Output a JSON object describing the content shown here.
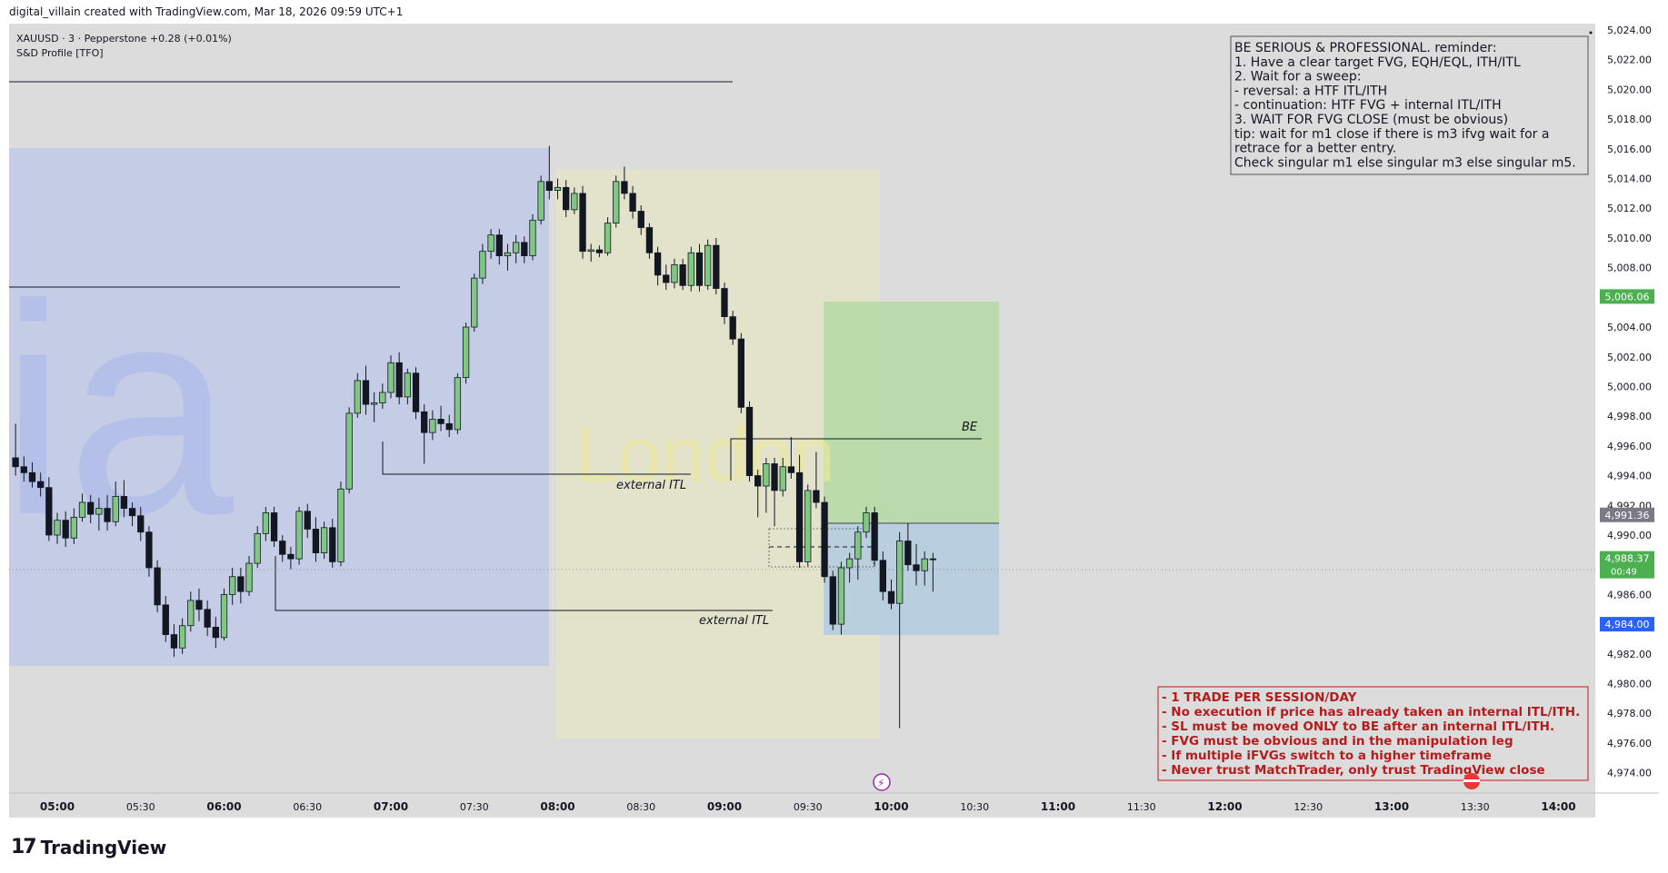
{
  "header": {
    "created_by": "digital_villain created with TradingView.com, Mar 18, 2026 09:59 UTC+1"
  },
  "legend": {
    "symbol_line": "XAUUSD · 3 · Pepperstone  +0.28 (+0.01%)",
    "indicator": "S&D Profile [TFO]"
  },
  "watermark": "ia",
  "session_label": "London",
  "notes": {
    "top": [
      "BE SERIOUS & PROFESSIONAL. reminder:",
      "1. Have a clear target FVG, EQH/EQL, ITH/ITL",
      "2. Wait for a sweep:",
      "- reversal: a HTF ITL/ITH",
      "- continuation: HTF FVG + internal ITL/ITH",
      "3. WAIT FOR FVG CLOSE (must be obvious)",
      "tip: wait for m1 close if there is m3 ifvg wait for a",
      "retrace for a better entry.",
      "Check singular m1 else singular m3 else singular m5."
    ],
    "bottom": [
      "- 1 TRADE PER SESSION/DAY",
      "- No execution if price has already taken an internal ITL/ITH.",
      "- SL must be moved ONLY to BE after an internal ITL/ITH.",
      "- FVG must be obvious and in the manipulation leg",
      "- If multiple iFVGs switch to a higher timeframe",
      "- Never trust MatchTrader, only trust TradingView close"
    ]
  },
  "annotations": [
    {
      "id": "external-itl-1",
      "text": "external ITL"
    },
    {
      "id": "external-itl-2",
      "text": "external ITL"
    },
    {
      "id": "be",
      "text": "BE"
    }
  ],
  "price_badges": [
    {
      "id": "target",
      "text": "5,006.06",
      "value": 5006.06,
      "color": "#4caf50"
    },
    {
      "id": "be-level",
      "text": "4,991.36",
      "value": 4991.36,
      "color": "#787b86"
    },
    {
      "id": "current",
      "text": "4,988.37",
      "subtext": "00:49",
      "value": 4988.37,
      "color": "#4caf50"
    },
    {
      "id": "stop",
      "text": "4,984.00",
      "value": 4984.0,
      "color": "#2962ff"
    }
  ],
  "brand": {
    "logo_text": "TradingView"
  },
  "colors": {
    "background": "#dcdcdc",
    "bull": "#81c784",
    "bear": "#131722",
    "asia_zone": "#c5cde6",
    "london_zone": "#e3e2cb",
    "profit_zone": "#b4d9a6",
    "risk_zone": "#b5cde0",
    "note_red": "#b71c1c"
  },
  "chart_data": {
    "type": "candlestick",
    "symbol": "XAUUSD",
    "timeframe": "3",
    "broker": "Pepperstone",
    "ylim": [
      4973,
      5024
    ],
    "y_ticks": [
      "5,024.00",
      "5,022.00",
      "5,020.00",
      "5,018.00",
      "5,016.00",
      "5,014.00",
      "5,012.00",
      "5,010.00",
      "5,008.00",
      "5,006.00",
      "5,004.00",
      "5,002.00",
      "5,000.00",
      "4,998.00",
      "4,996.00",
      "4,994.00",
      "4,992.00",
      "4,990.00",
      "4,988.00",
      "4,986.00",
      "4,984.00",
      "4,982.00",
      "4,980.00",
      "4,978.00",
      "4,976.00",
      "4,974.00"
    ],
    "x_ticks": [
      "05:00",
      "05:30",
      "06:00",
      "06:30",
      "07:00",
      "07:30",
      "08:00",
      "08:30",
      "09:00",
      "09:30",
      "10:00",
      "10:30",
      "11:00",
      "11:30",
      "12:00",
      "12:30",
      "13:00",
      "13:30",
      "14:00"
    ],
    "candles": [
      {
        "t": "04:45",
        "o": 4995.2,
        "h": 4997.5,
        "l": 4994.0,
        "c": 4994.6
      },
      {
        "t": "04:48",
        "o": 4994.6,
        "h": 4995.3,
        "l": 4993.6,
        "c": 4994.2
      },
      {
        "t": "04:51",
        "o": 4994.2,
        "h": 4994.9,
        "l": 4993.2,
        "c": 4993.6
      },
      {
        "t": "04:54",
        "o": 4993.6,
        "h": 4994.2,
        "l": 4992.6,
        "c": 4993.2
      },
      {
        "t": "04:57",
        "o": 4993.2,
        "h": 4993.9,
        "l": 4989.6,
        "c": 4990.0
      },
      {
        "t": "05:00",
        "o": 4990.0,
        "h": 4991.5,
        "l": 4989.4,
        "c": 4991.0
      },
      {
        "t": "05:03",
        "o": 4991.0,
        "h": 4991.6,
        "l": 4989.2,
        "c": 4989.8
      },
      {
        "t": "05:06",
        "o": 4989.8,
        "h": 4991.8,
        "l": 4989.4,
        "c": 4991.2
      },
      {
        "t": "05:09",
        "o": 4991.2,
        "h": 4992.8,
        "l": 4990.9,
        "c": 4992.2
      },
      {
        "t": "05:12",
        "o": 4992.2,
        "h": 4992.7,
        "l": 4990.8,
        "c": 4991.4
      },
      {
        "t": "05:15",
        "o": 4991.4,
        "h": 4992.5,
        "l": 4990.3,
        "c": 4991.8
      },
      {
        "t": "05:18",
        "o": 4991.8,
        "h": 4992.7,
        "l": 4990.3,
        "c": 4990.9
      },
      {
        "t": "05:21",
        "o": 4990.9,
        "h": 4993.6,
        "l": 4990.6,
        "c": 4992.6
      },
      {
        "t": "05:24",
        "o": 4992.6,
        "h": 4993.7,
        "l": 4991.2,
        "c": 4991.8
      },
      {
        "t": "05:27",
        "o": 4991.8,
        "h": 4992.2,
        "l": 4990.6,
        "c": 4991.3
      },
      {
        "t": "05:30",
        "o": 4991.3,
        "h": 4991.9,
        "l": 4989.6,
        "c": 4990.2
      },
      {
        "t": "05:33",
        "o": 4990.2,
        "h": 4990.6,
        "l": 4987.2,
        "c": 4987.8
      },
      {
        "t": "05:36",
        "o": 4987.8,
        "h": 4988.3,
        "l": 4984.8,
        "c": 4985.3
      },
      {
        "t": "05:39",
        "o": 4985.3,
        "h": 4985.9,
        "l": 4982.8,
        "c": 4983.3
      },
      {
        "t": "05:42",
        "o": 4983.3,
        "h": 4984.0,
        "l": 4981.8,
        "c": 4982.4
      },
      {
        "t": "05:45",
        "o": 4982.4,
        "h": 4984.4,
        "l": 4982.0,
        "c": 4983.9
      },
      {
        "t": "05:48",
        "o": 4983.9,
        "h": 4986.2,
        "l": 4983.5,
        "c": 4985.6
      },
      {
        "t": "05:51",
        "o": 4985.6,
        "h": 4986.4,
        "l": 4984.2,
        "c": 4985.0
      },
      {
        "t": "05:54",
        "o": 4985.0,
        "h": 4985.6,
        "l": 4983.2,
        "c": 4983.8
      },
      {
        "t": "05:57",
        "o": 4983.8,
        "h": 4984.5,
        "l": 4982.4,
        "c": 4983.1
      },
      {
        "t": "06:00",
        "o": 4983.1,
        "h": 4986.4,
        "l": 4982.9,
        "c": 4986.0
      },
      {
        "t": "06:03",
        "o": 4986.0,
        "h": 4987.8,
        "l": 4985.3,
        "c": 4987.2
      },
      {
        "t": "06:06",
        "o": 4987.2,
        "h": 4987.8,
        "l": 4985.4,
        "c": 4986.2
      },
      {
        "t": "06:09",
        "o": 4986.2,
        "h": 4988.6,
        "l": 4985.9,
        "c": 4988.1
      },
      {
        "t": "06:12",
        "o": 4988.1,
        "h": 4990.6,
        "l": 4987.8,
        "c": 4990.1
      },
      {
        "t": "06:15",
        "o": 4990.1,
        "h": 4991.9,
        "l": 4989.6,
        "c": 4991.5
      },
      {
        "t": "06:18",
        "o": 4991.5,
        "h": 4991.9,
        "l": 4989.2,
        "c": 4989.6
      },
      {
        "t": "06:21",
        "o": 4989.6,
        "h": 4990.0,
        "l": 4988.2,
        "c": 4988.7
      },
      {
        "t": "06:24",
        "o": 4988.7,
        "h": 4989.2,
        "l": 4987.7,
        "c": 4988.4
      },
      {
        "t": "06:27",
        "o": 4988.4,
        "h": 4991.9,
        "l": 4988.0,
        "c": 4991.6
      },
      {
        "t": "06:30",
        "o": 4991.6,
        "h": 4992.1,
        "l": 4989.8,
        "c": 4990.4
      },
      {
        "t": "06:33",
        "o": 4990.4,
        "h": 4991.2,
        "l": 4988.2,
        "c": 4988.8
      },
      {
        "t": "06:36",
        "o": 4988.8,
        "h": 4990.9,
        "l": 4988.4,
        "c": 4990.5
      },
      {
        "t": "06:39",
        "o": 4990.5,
        "h": 4991.1,
        "l": 4987.8,
        "c": 4988.2
      },
      {
        "t": "06:42",
        "o": 4988.2,
        "h": 4993.6,
        "l": 4987.9,
        "c": 4993.1
      },
      {
        "t": "06:45",
        "o": 4993.1,
        "h": 4998.6,
        "l": 4992.8,
        "c": 4998.2
      },
      {
        "t": "06:48",
        "o": 4998.2,
        "h": 5000.9,
        "l": 4997.9,
        "c": 5000.4
      },
      {
        "t": "06:51",
        "o": 5000.4,
        "h": 5001.4,
        "l": 4998.1,
        "c": 4998.8
      },
      {
        "t": "06:54",
        "o": 4998.8,
        "h": 4999.6,
        "l": 4997.6,
        "c": 4998.9
      },
      {
        "t": "06:57",
        "o": 4998.9,
        "h": 5000.2,
        "l": 4998.5,
        "c": 4999.6
      },
      {
        "t": "07:00",
        "o": 4999.6,
        "h": 5002.1,
        "l": 4999.2,
        "c": 5001.6
      },
      {
        "t": "07:03",
        "o": 5001.6,
        "h": 5002.3,
        "l": 4998.8,
        "c": 4999.3
      },
      {
        "t": "07:06",
        "o": 4999.3,
        "h": 5001.2,
        "l": 4998.8,
        "c": 5000.9
      },
      {
        "t": "07:09",
        "o": 5000.9,
        "h": 5001.3,
        "l": 4997.8,
        "c": 4998.3
      },
      {
        "t": "07:12",
        "o": 4998.3,
        "h": 4998.8,
        "l": 4994.8,
        "c": 4996.9
      },
      {
        "t": "07:15",
        "o": 4996.9,
        "h": 4998.4,
        "l": 4996.4,
        "c": 4997.8
      },
      {
        "t": "07:18",
        "o": 4997.8,
        "h": 4998.7,
        "l": 4997.0,
        "c": 4997.5
      },
      {
        "t": "07:21",
        "o": 4997.5,
        "h": 4998.1,
        "l": 4996.6,
        "c": 4997.1
      },
      {
        "t": "07:24",
        "o": 4997.1,
        "h": 5000.9,
        "l": 4996.8,
        "c": 5000.6
      },
      {
        "t": "07:27",
        "o": 5000.6,
        "h": 5004.3,
        "l": 5000.2,
        "c": 5004.0
      },
      {
        "t": "07:30",
        "o": 5004.0,
        "h": 5007.6,
        "l": 5003.7,
        "c": 5007.3
      },
      {
        "t": "07:33",
        "o": 5007.3,
        "h": 5009.6,
        "l": 5006.9,
        "c": 5009.1
      },
      {
        "t": "07:36",
        "o": 5009.1,
        "h": 5010.6,
        "l": 5008.6,
        "c": 5010.2
      },
      {
        "t": "07:39",
        "o": 5010.2,
        "h": 5010.6,
        "l": 5008.2,
        "c": 5008.8
      },
      {
        "t": "07:42",
        "o": 5008.8,
        "h": 5009.6,
        "l": 5007.8,
        "c": 5009.0
      },
      {
        "t": "07:45",
        "o": 5009.0,
        "h": 5010.2,
        "l": 5008.3,
        "c": 5009.7
      },
      {
        "t": "07:48",
        "o": 5009.7,
        "h": 5010.1,
        "l": 5008.3,
        "c": 5008.8
      },
      {
        "t": "07:51",
        "o": 5008.8,
        "h": 5011.6,
        "l": 5008.5,
        "c": 5011.2
      },
      {
        "t": "07:54",
        "o": 5011.2,
        "h": 5014.2,
        "l": 5010.9,
        "c": 5013.8
      },
      {
        "t": "07:57",
        "o": 5013.8,
        "h": 5016.2,
        "l": 5012.6,
        "c": 5013.2
      },
      {
        "t": "08:00",
        "o": 5013.2,
        "h": 5014.0,
        "l": 5012.6,
        "c": 5013.4
      },
      {
        "t": "08:03",
        "o": 5013.4,
        "h": 5013.9,
        "l": 5011.4,
        "c": 5011.9
      },
      {
        "t": "08:06",
        "o": 5011.9,
        "h": 5013.4,
        "l": 5011.6,
        "c": 5013.0
      },
      {
        "t": "08:09",
        "o": 5013.0,
        "h": 5013.5,
        "l": 5008.6,
        "c": 5009.1
      },
      {
        "t": "08:12",
        "o": 5009.1,
        "h": 5009.6,
        "l": 5008.4,
        "c": 5009.2
      },
      {
        "t": "08:15",
        "o": 5009.2,
        "h": 5009.5,
        "l": 5008.7,
        "c": 5009.0
      },
      {
        "t": "08:18",
        "o": 5009.0,
        "h": 5011.4,
        "l": 5008.8,
        "c": 5011.0
      },
      {
        "t": "08:21",
        "o": 5011.0,
        "h": 5014.2,
        "l": 5010.7,
        "c": 5013.8
      },
      {
        "t": "08:24",
        "o": 5013.8,
        "h": 5014.8,
        "l": 5012.6,
        "c": 5013.0
      },
      {
        "t": "08:27",
        "o": 5013.0,
        "h": 5013.5,
        "l": 5011.3,
        "c": 5011.8
      },
      {
        "t": "08:30",
        "o": 5011.8,
        "h": 5012.2,
        "l": 5010.2,
        "c": 5010.7
      },
      {
        "t": "08:33",
        "o": 5010.7,
        "h": 5011.0,
        "l": 5008.6,
        "c": 5009.0
      },
      {
        "t": "08:36",
        "o": 5009.0,
        "h": 5009.4,
        "l": 5006.8,
        "c": 5007.5
      },
      {
        "t": "08:39",
        "o": 5007.5,
        "h": 5008.2,
        "l": 5006.5,
        "c": 5007.0
      },
      {
        "t": "08:42",
        "o": 5007.0,
        "h": 5008.6,
        "l": 5006.6,
        "c": 5008.2
      },
      {
        "t": "08:45",
        "o": 5008.2,
        "h": 5008.6,
        "l": 5006.5,
        "c": 5006.8
      },
      {
        "t": "08:48",
        "o": 5006.8,
        "h": 5009.4,
        "l": 5006.4,
        "c": 5009.0
      },
      {
        "t": "08:51",
        "o": 5009.0,
        "h": 5009.6,
        "l": 5006.4,
        "c": 5006.8
      },
      {
        "t": "08:54",
        "o": 5006.8,
        "h": 5009.9,
        "l": 5006.5,
        "c": 5009.5
      },
      {
        "t": "08:57",
        "o": 5009.5,
        "h": 5010.0,
        "l": 5006.2,
        "c": 5006.6
      },
      {
        "t": "09:00",
        "o": 5006.6,
        "h": 5007.0,
        "l": 5004.2,
        "c": 5004.7
      },
      {
        "t": "09:03",
        "o": 5004.7,
        "h": 5005.1,
        "l": 5002.8,
        "c": 5003.2
      },
      {
        "t": "09:06",
        "o": 5003.2,
        "h": 5003.6,
        "l": 4998.2,
        "c": 4998.6
      },
      {
        "t": "09:09",
        "o": 4998.6,
        "h": 4999.0,
        "l": 4993.6,
        "c": 4994.0
      },
      {
        "t": "09:12",
        "o": 4994.0,
        "h": 4994.4,
        "l": 4991.2,
        "c": 4993.3
      },
      {
        "t": "09:15",
        "o": 4993.3,
        "h": 4995.2,
        "l": 4991.5,
        "c": 4994.8
      },
      {
        "t": "09:18",
        "o": 4994.8,
        "h": 4995.2,
        "l": 4990.6,
        "c": 4993.0
      },
      {
        "t": "09:21",
        "o": 4993.0,
        "h": 4995.2,
        "l": 4992.6,
        "c": 4994.6
      },
      {
        "t": "09:24",
        "o": 4994.6,
        "h": 4996.6,
        "l": 4993.8,
        "c": 4994.2
      },
      {
        "t": "09:27",
        "o": 4994.2,
        "h": 4995.4,
        "l": 4987.8,
        "c": 4988.2
      },
      {
        "t": "09:30",
        "o": 4988.2,
        "h": 4993.4,
        "l": 4987.9,
        "c": 4993.0
      },
      {
        "t": "09:33",
        "o": 4993.0,
        "h": 4995.6,
        "l": 4991.8,
        "c": 4992.2
      },
      {
        "t": "09:36",
        "o": 4992.2,
        "h": 4992.6,
        "l": 4986.8,
        "c": 4987.2
      },
      {
        "t": "09:39",
        "o": 4987.2,
        "h": 4987.6,
        "l": 4983.6,
        "c": 4984.0
      },
      {
        "t": "09:42",
        "o": 4984.0,
        "h": 4988.2,
        "l": 4983.3,
        "c": 4987.8
      },
      {
        "t": "09:45",
        "o": 4987.8,
        "h": 4988.8,
        "l": 4986.8,
        "c": 4988.4
      },
      {
        "t": "09:48",
        "o": 4988.4,
        "h": 4990.6,
        "l": 4987.0,
        "c": 4990.2
      },
      {
        "t": "09:51",
        "o": 4990.2,
        "h": 4991.9,
        "l": 4989.8,
        "c": 4991.5
      },
      {
        "t": "09:54",
        "o": 4991.5,
        "h": 4991.9,
        "l": 4987.9,
        "c": 4988.3
      },
      {
        "t": "09:57",
        "o": 4988.3,
        "h": 4988.9,
        "l": 4985.6,
        "c": 4986.2
      },
      {
        "t": "10:00",
        "o": 4986.2,
        "h": 4987.0,
        "l": 4985.0,
        "c": 4985.4
      },
      {
        "t": "10:03",
        "o": 4985.4,
        "h": 4990.2,
        "l": 4977.0,
        "c": 4989.6
      },
      {
        "t": "10:06",
        "o": 4989.6,
        "h": 4990.8,
        "l": 4987.6,
        "c": 4988.0
      },
      {
        "t": "10:09",
        "o": 4988.0,
        "h": 4989.4,
        "l": 4986.6,
        "c": 4987.6
      },
      {
        "t": "10:12",
        "o": 4987.6,
        "h": 4988.9,
        "l": 4986.6,
        "c": 4988.4
      },
      {
        "t": "10:15",
        "o": 4988.4,
        "h": 4988.8,
        "l": 4986.2,
        "c": 4988.37
      }
    ],
    "levels": [
      {
        "name": "external ITL",
        "price": 4994.6
      },
      {
        "name": "external ITL",
        "price": 4985.6
      },
      {
        "name": "BE",
        "price": 4997.0
      }
    ],
    "position": {
      "target": 5006.06,
      "entry": 4991.36,
      "stop": 4984.0
    },
    "current_price": 4988.37,
    "grid": false
  }
}
